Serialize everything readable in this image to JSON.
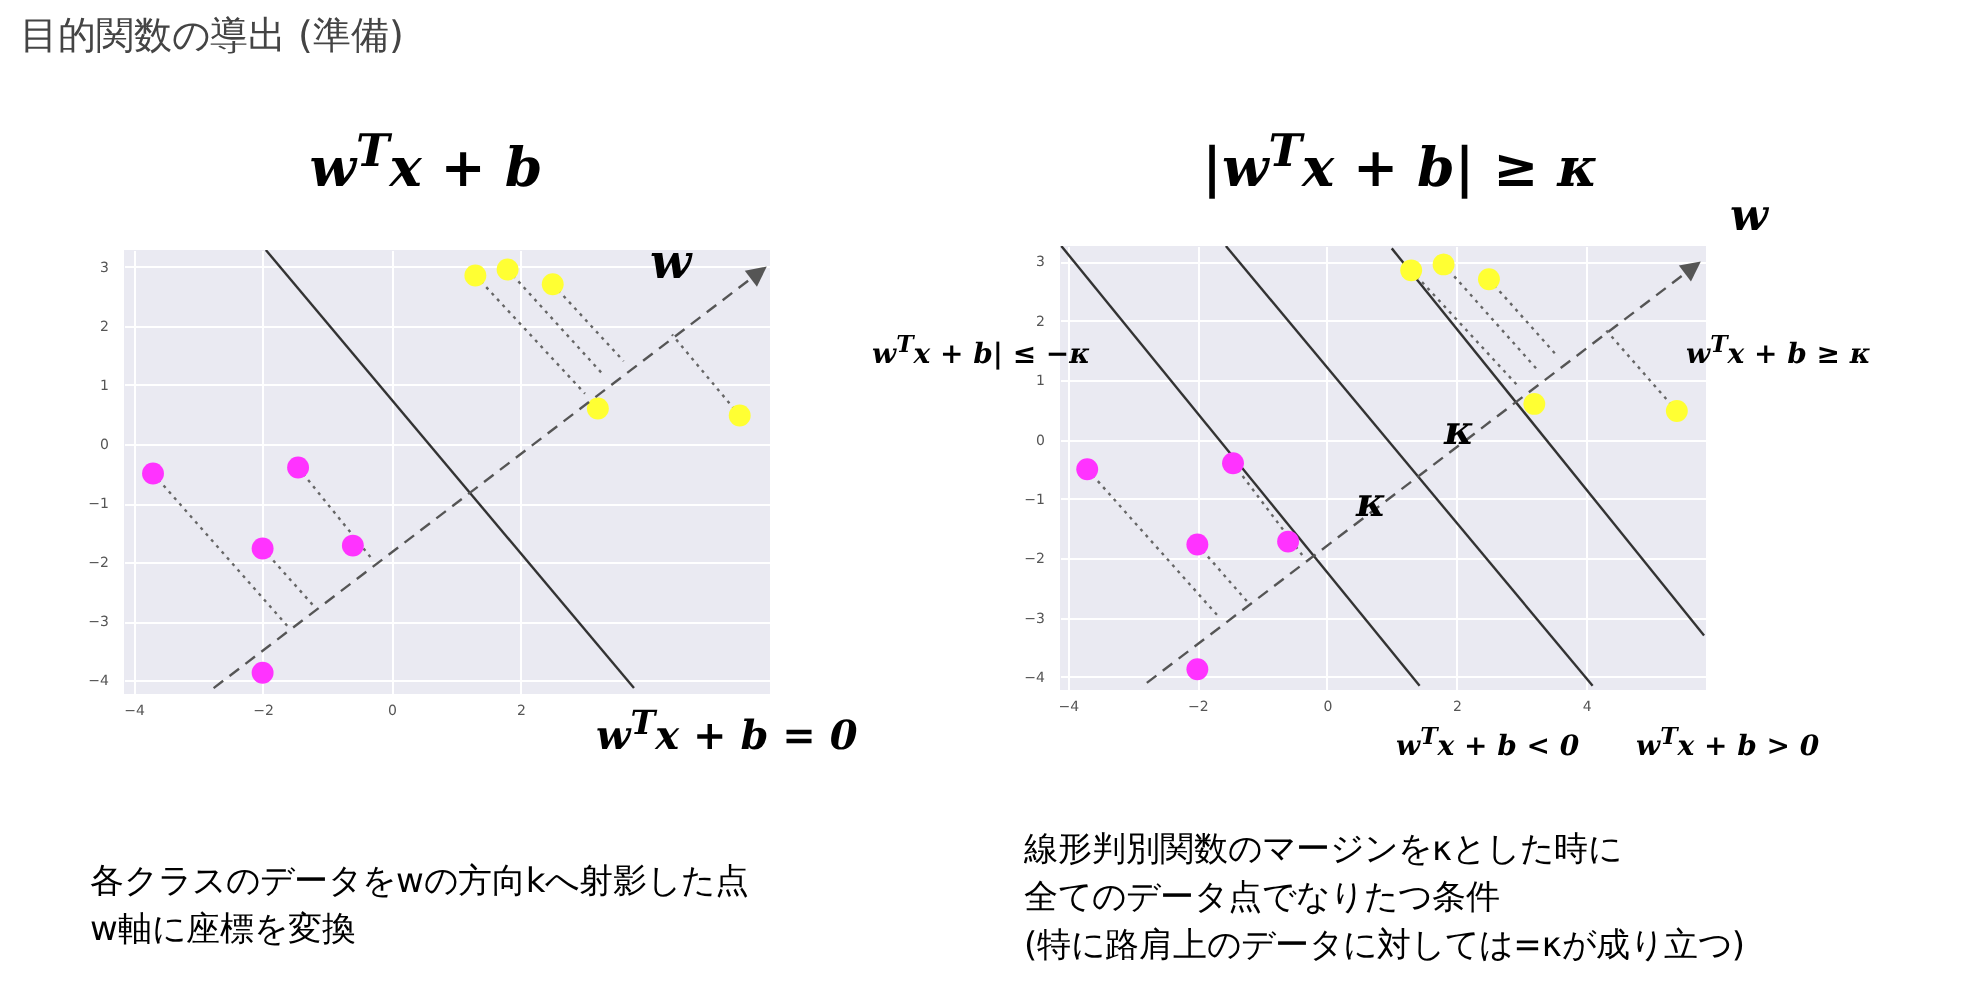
{
  "chart_data": [
    {
      "type": "scatter",
      "title": "目的関数の導出 (準備)",
      "subtitle": "w$^{T}$x + b",
      "xlim": [
        -4.15,
        5.87
      ],
      "ylim": [
        -4.23,
        3.28
      ],
      "xticks": [
        -4,
        -2,
        0,
        2
      ],
      "yticks": [
        -4,
        -3,
        -2,
        -1,
        0,
        1,
        2,
        3
      ],
      "grid": true,
      "annotations": [
        "w",
        "w$^{T}$x + b = 0",
        "各クラスのデータをwの方向kへ射影した点",
        "w軸に座標を変換"
      ],
      "series": [
        {
          "color": "#ff33ff",
          "marker": "circle",
          "x": [
            -3.7,
            -2,
            -1.45,
            -0.6,
            -2
          ],
          "values": [
            -0.5,
            -1.77,
            -0.4,
            -1.72,
            -3.87
          ]
        },
        {
          "color": "#ffff33",
          "marker": "circle",
          "x": [
            1.3,
            1.8,
            2.5,
            3.2,
            5.4
          ],
          "values": [
            2.85,
            2.95,
            2.7,
            0.6,
            0.48
          ]
        },
        {
          "type": "line",
          "color": "#333333",
          "line_style": "solid",
          "x": [
            -1.95,
            3.76
          ],
          "values": [
            3.28,
            -4.13
          ]
        },
        {
          "type": "line",
          "color": "#666666",
          "line_style": "dotted",
          "x": [
            -3.7,
            -1.6
          ],
          "values": [
            -0.5,
            -3.1
          ]
        },
        {
          "type": "line",
          "color": "#666666",
          "line_style": "dotted",
          "x": [
            -2,
            -1.2
          ],
          "values": [
            -1.77,
            -2.75
          ]
        },
        {
          "type": "line",
          "color": "#666666",
          "line_style": "dotted",
          "x": [
            -1.45,
            -0.3
          ],
          "values": [
            -0.4,
            -1.95
          ]
        },
        {
          "type": "line",
          "color": "#666666",
          "line_style": "dotted",
          "x": [
            1.3,
            3.0
          ],
          "values": [
            2.85,
            0.85
          ]
        },
        {
          "type": "line",
          "color": "#666666",
          "line_style": "dotted",
          "x": [
            1.8,
            3.3
          ],
          "values": [
            2.95,
            1.15
          ]
        },
        {
          "type": "line",
          "color": "#666666",
          "line_style": "dotted",
          "x": [
            2.5,
            3.6
          ],
          "values": [
            2.7,
            1.4
          ]
        },
        {
          "type": "line",
          "color": "#666666",
          "line_style": "dotted",
          "x": [
            5.4,
            4.35
          ],
          "values": [
            0.48,
            1.85
          ]
        }
      ]
    },
    {
      "type": "scatter",
      "subtitle": "|w$^{T}$x + b| ≥ κ",
      "xlim": [
        -4.12,
        5.85
      ],
      "ylim": [
        -4.22,
        3.26
      ],
      "xticks": [
        -4,
        -2,
        0,
        2,
        4
      ],
      "yticks": [
        -4,
        -3,
        -2,
        -1,
        0,
        1,
        2,
        3
      ],
      "grid": true,
      "annotations": [
        "w",
        "w$^{T}$x + b| ≤ −κ",
        "w$^{T}$x + b ≥ κ",
        "κ",
        "κ",
        "w$^{T}$x + b < 0",
        "w$^{T}$x + b > 0",
        "線形判別関数のマージンをκとした時に",
        "全てのデータ点でなりたつ条件",
        "(特に路肩上のデータに対しては=κが成り立つ)"
      ],
      "series": [
        {
          "color": "#ff33ff",
          "marker": "circle",
          "x": [
            -3.7,
            -2,
            -1.45,
            -0.6,
            -2
          ],
          "values": [
            -0.5,
            -1.77,
            -0.4,
            -1.72,
            -3.87
          ]
        },
        {
          "color": "#ffff33",
          "marker": "circle",
          "x": [
            1.3,
            1.8,
            2.5,
            3.2,
            5.4
          ],
          "values": [
            2.85,
            2.95,
            2.7,
            0.6,
            0.48
          ]
        },
        {
          "type": "line",
          "color": "#333333",
          "line_style": "solid",
          "x": [
            -4.1,
            1.43
          ],
          "values": [
            3.26,
            -4.15
          ]
        },
        {
          "type": "line",
          "color": "#333333",
          "line_style": "solid",
          "x": [
            -1.56,
            4.1
          ],
          "values": [
            3.26,
            -4.15
          ]
        },
        {
          "type": "line",
          "color": "#333333",
          "line_style": "solid",
          "x": [
            1.0,
            5.82
          ],
          "values": [
            3.22,
            -3.3
          ]
        },
        {
          "type": "line",
          "color": "#666666",
          "line_style": "dotted",
          "x": [
            -3.7,
            -1.66
          ],
          "values": [
            -0.5,
            -3.0
          ]
        },
        {
          "type": "line",
          "color": "#666666",
          "line_style": "dotted",
          "x": [
            -2,
            -1.23
          ],
          "values": [
            -1.77,
            -2.73
          ]
        },
        {
          "type": "line",
          "color": "#666666",
          "line_style": "dotted",
          "x": [
            -1.45,
            -0.38
          ],
          "values": [
            -0.4,
            -1.95
          ]
        },
        {
          "type": "line",
          "color": "#666666",
          "line_style": "dotted",
          "x": [
            1.3,
            2.95
          ],
          "values": [
            2.85,
            0.9
          ]
        },
        {
          "type": "line",
          "color": "#666666",
          "line_style": "dotted",
          "x": [
            1.8,
            3.26
          ],
          "values": [
            2.95,
            1.16
          ]
        },
        {
          "type": "line",
          "color": "#666666",
          "line_style": "dotted",
          "x": [
            2.5,
            3.56
          ],
          "values": [
            2.7,
            1.4
          ]
        },
        {
          "type": "line",
          "color": "#666666",
          "line_style": "dotted",
          "x": [
            5.4,
            4.3
          ],
          "values": [
            0.48,
            1.85
          ]
        }
      ]
    }
  ]
}
